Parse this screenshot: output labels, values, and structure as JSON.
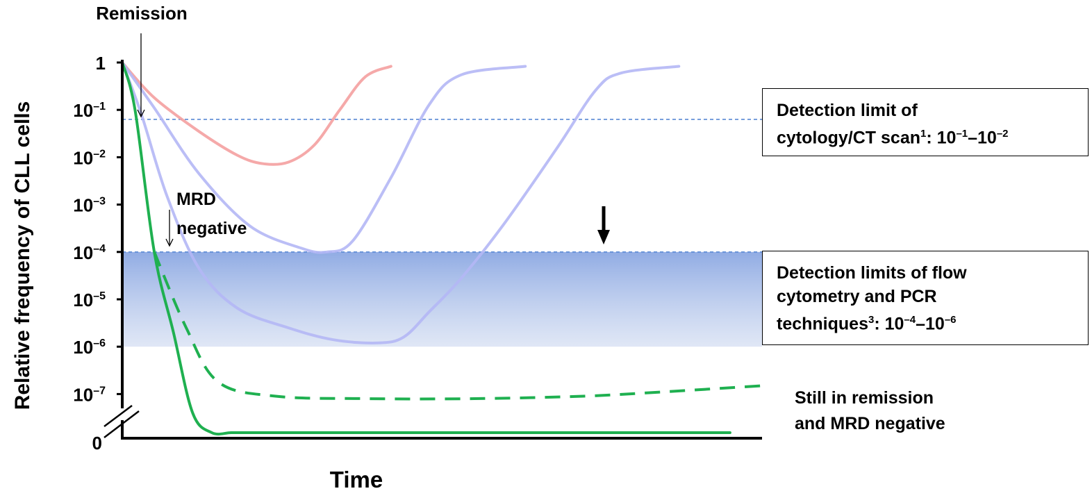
{
  "chart_data": {
    "type": "line",
    "title": "",
    "xlabel": "Time",
    "ylabel": "Relative frequency of CLL cells",
    "y_scale": "log",
    "y_ticks": [
      {
        "base": "1",
        "exp": "",
        "value": 1
      },
      {
        "base": "10",
        "exp": "–1",
        "value": 0.1
      },
      {
        "base": "10",
        "exp": "–2",
        "value": 0.01
      },
      {
        "base": "10",
        "exp": "–3",
        "value": 0.001
      },
      {
        "base": "10",
        "exp": "–4",
        "value": 0.0001
      },
      {
        "base": "10",
        "exp": "–5",
        "value": 1e-05
      },
      {
        "base": "10",
        "exp": "–6",
        "value": 1e-06
      },
      {
        "base": "10",
        "exp": "–7",
        "value": 1e-07
      },
      {
        "base": "0",
        "exp": "",
        "value": 0
      }
    ],
    "x_range": [
      0,
      100
    ],
    "axis_break": true,
    "series": [
      {
        "color": "#f4a0a0",
        "style": "solid",
        "points": [
          [
            0,
            1
          ],
          [
            5,
            0.18
          ],
          [
            12,
            0.035
          ],
          [
            18,
            0.011
          ],
          [
            22,
            0.0073
          ],
          [
            26,
            0.0079
          ],
          [
            30,
            0.018
          ],
          [
            34,
            0.1
          ],
          [
            38,
            0.5
          ],
          [
            42,
            0.83
          ]
        ]
      },
      {
        "color": "#b4b7f5",
        "style": "solid",
        "points": [
          [
            0,
            1
          ],
          [
            5,
            0.11
          ],
          [
            12,
            0.0045
          ],
          [
            20,
            0.00035
          ],
          [
            28,
            0.00012
          ],
          [
            32,
            0.0001
          ],
          [
            36,
            0.00017
          ],
          [
            42,
            0.0037
          ],
          [
            48,
            0.13
          ],
          [
            53,
            0.55
          ],
          [
            63,
            0.83
          ]
        ]
      },
      {
        "color": "#b4b7f5",
        "style": "solid",
        "points": [
          [
            0,
            1
          ],
          [
            3,
            0.08
          ],
          [
            7,
            0.0015
          ],
          [
            12,
            4.5e-05
          ],
          [
            18,
            6.5e-06
          ],
          [
            26,
            2.5e-06
          ],
          [
            33,
            1.4e-06
          ],
          [
            40,
            1.2e-06
          ],
          [
            44,
            1.6e-06
          ],
          [
            48,
            5.5e-06
          ],
          [
            53,
            2.8e-05
          ],
          [
            60,
            0.00045
          ],
          [
            68,
            0.016
          ],
          [
            74,
            0.26
          ],
          [
            78,
            0.6
          ],
          [
            87,
            0.83
          ]
        ]
      },
      {
        "color": "#1fb050",
        "style": "dashed",
        "points": [
          [
            5,
            0.0001
          ],
          [
            10,
            2.5e-06
          ],
          [
            15,
            1.8e-07
          ],
          [
            24,
            9e-08
          ],
          [
            38,
            8e-08
          ],
          [
            55,
            8e-08
          ],
          [
            72,
            9e-08
          ],
          [
            84,
            1.1e-07
          ],
          [
            100,
            1.5e-07
          ]
        ]
      },
      {
        "color": "#1fb050",
        "style": "solid",
        "points": [
          [
            0,
            1
          ],
          [
            2,
            0.1
          ],
          [
            5,
            0.0001
          ],
          [
            8,
            2e-06
          ],
          [
            11,
            4e-08
          ],
          [
            14,
            4e-09
          ],
          [
            17,
            9e-10
          ],
          [
            20,
            2.5e-10
          ],
          [
            28,
            0
          ],
          [
            95,
            0
          ]
        ]
      }
    ],
    "reference_lines": [
      {
        "value": 0.063,
        "color": "#4a7fd0",
        "style": "dashed"
      },
      {
        "value": 0.0001,
        "color": "#4a7fd0",
        "style": "dashed"
      }
    ],
    "shaded_band": {
      "from": 0.0001,
      "to": 1e-06,
      "color": "#7d9ddf"
    },
    "annotations": {
      "remission": "Remission",
      "mrd_line1": "MRD",
      "mrd_line2": "negative",
      "cytology_line1": "Detection limit of",
      "cytology_line2_text": "cytology/CT scan",
      "cytology_line2_ref": "1",
      "cytology_line2_range_a": ": 10",
      "cytology_line2_exp_a": "–1",
      "cytology_line2_range_b": "–10",
      "cytology_line2_exp_b": "–2",
      "flow_line1": "Detection limits of  flow",
      "flow_line2": "cytometry and PCR",
      "flow_line3_text": "techniques",
      "flow_line3_ref": "3",
      "flow_line3_range_a": ": 10",
      "flow_line3_exp_a": "–4",
      "flow_line3_range_b": "–10",
      "flow_line3_exp_b": "–6",
      "still_line1": "Still in remission",
      "still_line2": "and MRD negative"
    }
  }
}
